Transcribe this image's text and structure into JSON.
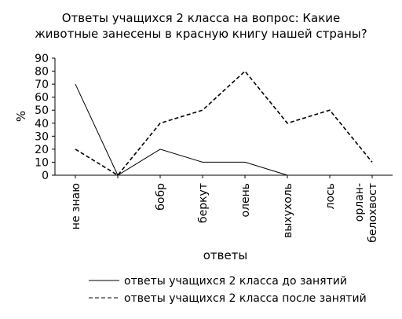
{
  "chart_data": {
    "type": "line",
    "title_line1": "Ответы учащихся 2 класса на вопрос: Какие",
    "title_line2": "животные занесены в красную книгу нашей страны?",
    "xlabel": "ответы",
    "ylabel": "%",
    "ylim": [
      0,
      90
    ],
    "yticks": [
      "0",
      "10",
      "20",
      "30",
      "40",
      "50",
      "60",
      "70",
      "80",
      "90"
    ],
    "categories": [
      "не знаю",
      "",
      "бобр",
      "беркут",
      "олень",
      "выхухоль",
      "лось",
      "орлан-\nбелохвост"
    ],
    "grid": false,
    "legend_position": "bottom",
    "series": [
      {
        "name": "ответы учащихся 2 класса до занятий",
        "style": "solid",
        "color": "#000000",
        "values": [
          70,
          0,
          20,
          10,
          10,
          0,
          null,
          null
        ]
      },
      {
        "name": "ответы учащихся 2 класса после занятий",
        "style": "dashed",
        "color": "#000000",
        "values": [
          20,
          0,
          40,
          50,
          80,
          40,
          50,
          10
        ]
      }
    ]
  }
}
